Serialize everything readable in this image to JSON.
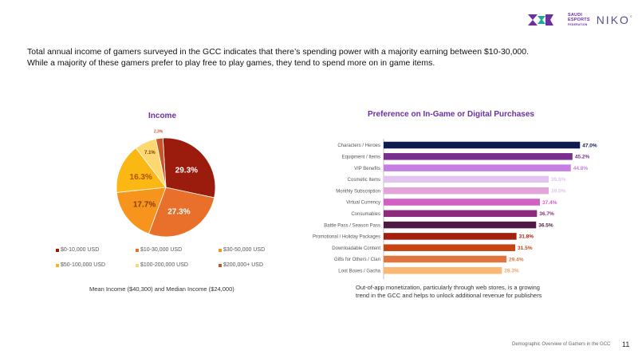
{
  "header": {
    "logo_org_line1": "SAUDI",
    "logo_org_line2": "ESPORTS",
    "logo_org_line3": "FEDERATION",
    "logo_partner": "NIKO",
    "logo_partner_mark": "°"
  },
  "intro": {
    "line1": "Total annual income of gamers surveyed in the GCC indicates that there’s spending power with a majority earning between $10-30,000.",
    "line2": "While a majority of these gamers prefer to play free to play games, they tend to spend more on in game items."
  },
  "income_note": "Mean Income ($40,300) and Median Income ($24,000)",
  "preference_note": {
    "line1": "Out-of-app monetization, particularly through web stores, is a growing",
    "line2": "trend in the GCC and helps to unlock additional revenue for publishers"
  },
  "footer": {
    "text": "Demographic Overview of Gamers in the GCC",
    "page": "11"
  },
  "chart_data": [
    {
      "type": "pie",
      "title": "Income",
      "categories": [
        "$0-10,000 USD",
        "$10-30,000 USD",
        "$30-50,000 USD",
        "$50-100,000 USD",
        "$100-200,000 USD",
        "$200,000+ USD"
      ],
      "values": [
        29.3,
        27.3,
        17.7,
        16.3,
        7.1,
        2.3
      ],
      "labels": [
        "29.3%",
        "27.3%",
        "17.7%",
        "16.3%",
        "7.1%",
        "2.3%"
      ],
      "colors": [
        "#9b1c0c",
        "#e8702a",
        "#f7941d",
        "#fbb812",
        "#fdd870",
        "#c9562b"
      ],
      "legend_position": "bottom"
    },
    {
      "type": "bar",
      "orientation": "horizontal",
      "title": "Preference on In-Game or Digital Purchases",
      "categories": [
        "Characters / Heroes",
        "Equipment / Items",
        "VIP Benefits",
        "Cosmetic Items",
        "Monthly Subscription",
        "Virtual Currency",
        "Consumables",
        "Battle Pass / Season Pass",
        "Promotional / Holiday Packages",
        "Downloadable Content",
        "Gifts for Others / Clan",
        "Loot Boxes / Gacha"
      ],
      "values": [
        47.0,
        45.2,
        44.8,
        39.5,
        39.5,
        37.4,
        36.7,
        36.5,
        31.8,
        31.5,
        29.4,
        28.3
      ],
      "labels": [
        "47.0%",
        "45.2%",
        "44.8%",
        "39.5%",
        "39.5%",
        "37.4%",
        "36.7%",
        "36.5%",
        "31.8%",
        "31.5%",
        "29.4%",
        "28.3%"
      ],
      "colors": [
        "#0d1b4f",
        "#7a2e8e",
        "#c77ee4",
        "#e3c4ef",
        "#e3a4d8",
        "#d45fc4",
        "#8c2a7e",
        "#4e1a43",
        "#a3200f",
        "#c74412",
        "#e0763e",
        "#f9b873"
      ],
      "xlim": [
        0,
        50
      ]
    }
  ]
}
